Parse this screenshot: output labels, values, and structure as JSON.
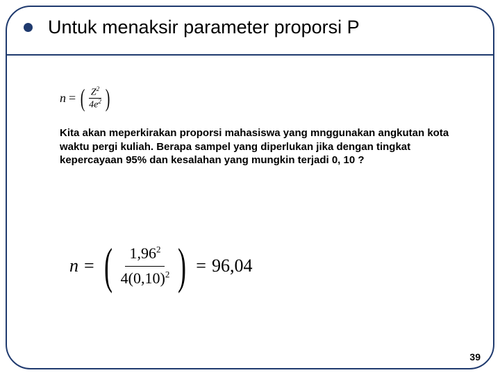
{
  "title": "Untuk menaksir parameter proporsi  P",
  "formula_small": {
    "lhs": "n",
    "numerator_base": "Z",
    "numerator_exp": "2",
    "denominator_coeff": "4",
    "denominator_base": "e",
    "denominator_exp": "2"
  },
  "body": "Kita akan meperkirakan proporsi mahasiswa yang mnggunakan angkutan kota waktu pergi kuliah.  Berapa sampel yang diperlukan jika dengan tingkat kepercayaan 95% dan kesalahan yang mungkin terjadi 0, 10 ?",
  "formula_large": {
    "lhs": "n",
    "num_base": "1,96",
    "num_exp": "2",
    "den_coeff": "4",
    "den_inner": "0,10",
    "den_exp": "2",
    "result": "96,04"
  },
  "page_number": "39",
  "colors": {
    "border": "#1f3a6e",
    "text": "#000000",
    "background": "#ffffff"
  }
}
